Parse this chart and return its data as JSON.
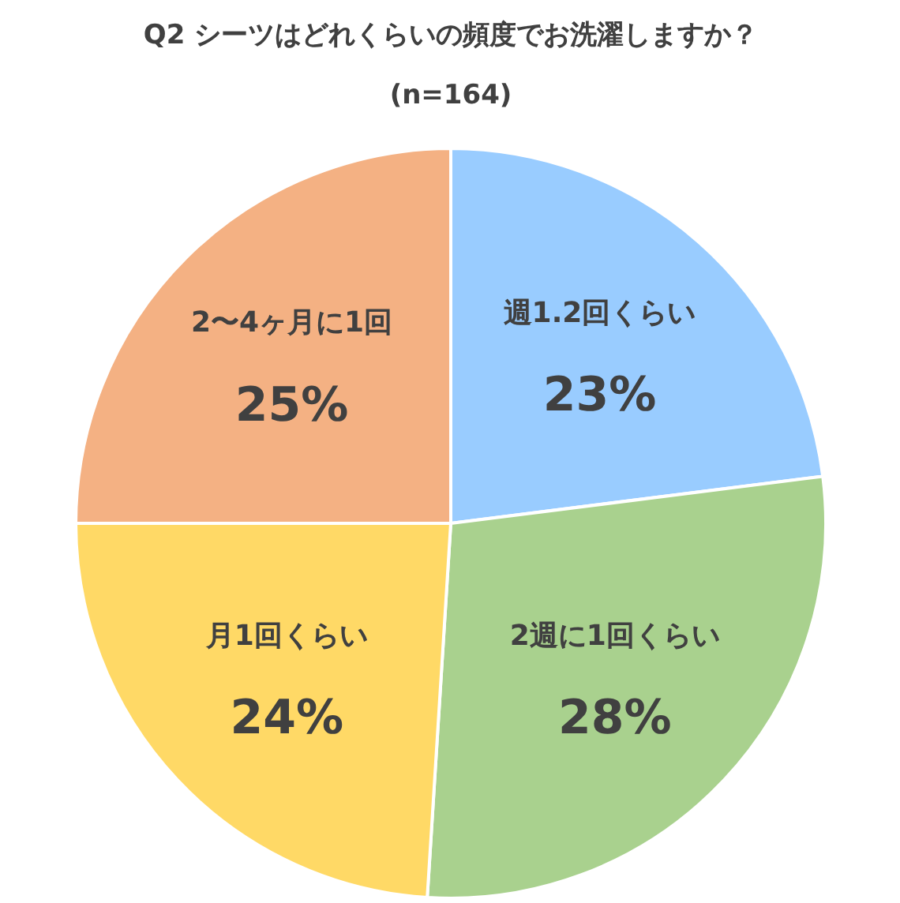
{
  "chart_data": {
    "type": "pie",
    "title": "Q2 シーツはどれくらいの頻度でお洗濯しますか？",
    "subtitle": "(n=164)",
    "categories": [
      "週1.2回くらい",
      "2週に1回くらい",
      "月1回くらい",
      "2〜4ヶ月に1回"
    ],
    "values": [
      23,
      28,
      24,
      25
    ],
    "colors": [
      "#99ccff",
      "#a9d18e",
      "#ffd966",
      "#f4b183"
    ],
    "value_labels": [
      "23%",
      "28%",
      "24%",
      "25%"
    ]
  }
}
